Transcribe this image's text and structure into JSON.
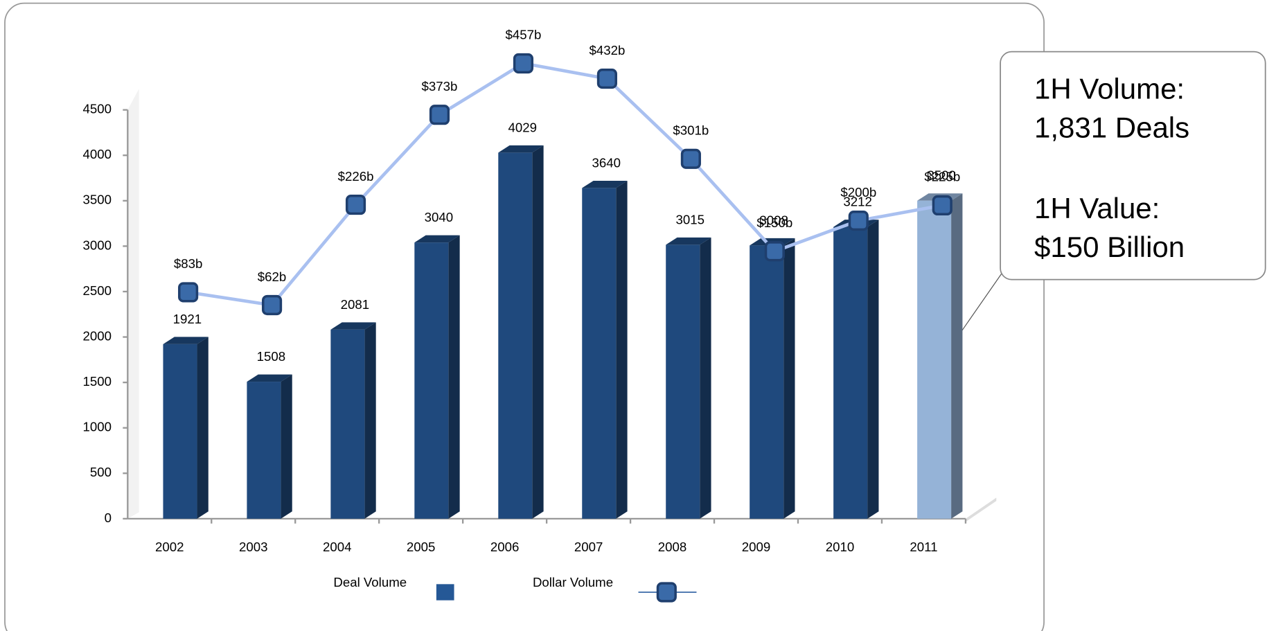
{
  "chart_data": {
    "type": "bar",
    "categories": [
      "2002",
      "2003",
      "2004",
      "2005",
      "2006",
      "2007",
      "2008",
      "2009",
      "2010",
      "2011"
    ],
    "series": [
      {
        "name": "Deal Volume",
        "type": "bar",
        "color": "#1f497d",
        "colors": [
          "#1f497d",
          "#1f497d",
          "#1f497d",
          "#1f497d",
          "#1f497d",
          "#1f497d",
          "#1f497d",
          "#1f497d",
          "#1f497d",
          "#95b3d7"
        ],
        "values": [
          1921,
          1508,
          2081,
          3040,
          4029,
          3640,
          3015,
          3008,
          3212,
          3500
        ]
      },
      {
        "name": "Dollar Volume",
        "type": "line",
        "axis": "y2",
        "color": "#a9c0f0",
        "marker_color": "#3a6aa8",
        "values": [
          83,
          62,
          226,
          373,
          457,
          432,
          301,
          150,
          200,
          225
        ],
        "value_labels": [
          "$83b",
          "$62b",
          "$226b",
          "$373b",
          "$457b",
          "$432b",
          "$301b",
          "$150b",
          "$200b",
          "$225b"
        ]
      }
    ],
    "ylim": [
      0,
      4500
    ],
    "yticks": [
      0,
      500,
      1000,
      1500,
      2000,
      2500,
      3000,
      3500,
      4000,
      4500
    ],
    "y2lim": [
      -287,
      381
    ],
    "grid": false,
    "legend": "bottom",
    "annotations": [
      "1H Volume:",
      "1,831 Deals",
      "1H Value:",
      "$150 Billion"
    ]
  }
}
